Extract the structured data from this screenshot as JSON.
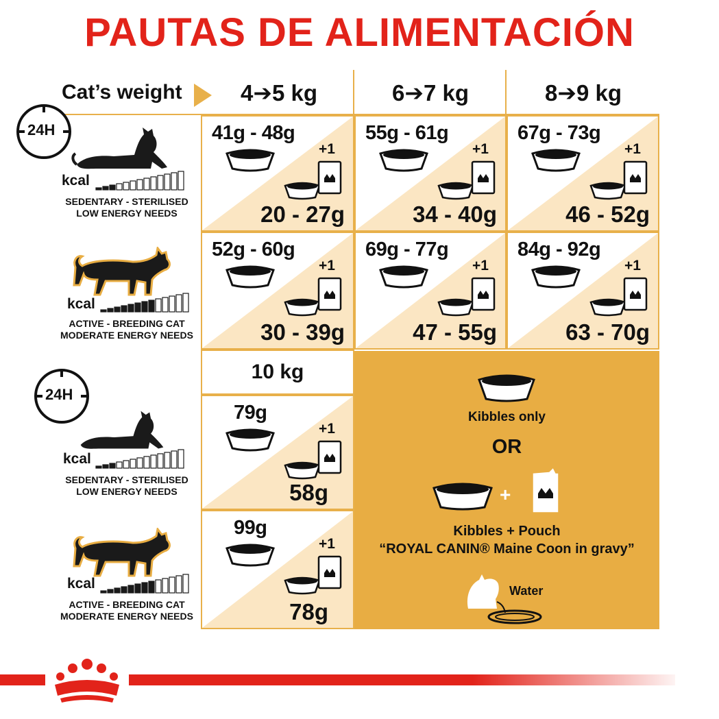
{
  "title": "PAUTAS DE ALIMENTACIÓN",
  "header": {
    "cats_weight_label": "Cat’s weight",
    "columns": [
      "4➔5 kg",
      "6➔7 kg",
      "8➔9 kg"
    ],
    "column_10": "10 kg"
  },
  "profiles": {
    "sedentary": {
      "line1": "SEDENTARY - STERILISED",
      "line2": "LOW ENERGY NEEDS"
    },
    "active": {
      "line1": "ACTIVE - BREEDING CAT",
      "line2": "MODERATE ENERGY NEEDS"
    },
    "kcal": "kcal",
    "clock": "24H"
  },
  "rows": [
    {
      "cells": [
        {
          "dry": "41g - 48g",
          "wet": "20 - 27g"
        },
        {
          "dry": "55g - 61g",
          "wet": "34 - 40g"
        },
        {
          "dry": "67g - 73g",
          "wet": "46 - 52g"
        }
      ]
    },
    {
      "cells": [
        {
          "dry": "52g - 60g",
          "wet": "30 - 39g"
        },
        {
          "dry": "69g - 77g",
          "wet": "47 - 55g"
        },
        {
          "dry": "84g - 92g",
          "wet": "63 - 70g"
        }
      ]
    },
    {
      "cells": [
        {
          "dry": "79g",
          "wet": "58g"
        }
      ]
    },
    {
      "cells": [
        {
          "dry": "99g",
          "wet": "78g"
        }
      ]
    }
  ],
  "plus_one": "+1",
  "legend": {
    "kibbles_only": "Kibbles only",
    "or": "OR",
    "plus": "+",
    "kibbles_pouch": "Kibbles + Pouch",
    "product": "“ROYAL CANIN® Maine Coon in gravy”",
    "water": "Water"
  },
  "colors": {
    "title": "#e2231a",
    "accent": "#e8b04a",
    "panel": "#e8ad43",
    "triangle": "#fbe6c3"
  }
}
